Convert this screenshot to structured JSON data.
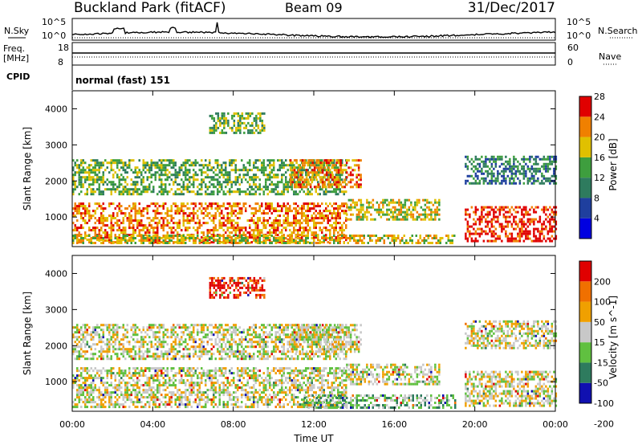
{
  "header": {
    "station": "Buckland Park (fitACF)",
    "beam": "Beam 09",
    "date": "31/Dec/2017"
  },
  "noise_panel": {
    "left_label": "N.Sky",
    "right_label": "N.Search",
    "ticks_left": [
      "10^5",
      "10^0"
    ],
    "ticks_right": [
      "10^5",
      "10^0"
    ]
  },
  "freq_panel": {
    "left_label_1": "Freq.",
    "left_label_2": "[MHz]",
    "left_ticks": [
      "18",
      "8"
    ],
    "right_label": "Nave",
    "right_ticks": [
      "60",
      "0"
    ]
  },
  "cpid_panel": {
    "label": "CPID",
    "program": "normal (fast) 151"
  },
  "chart_data": [
    {
      "type": "heatmap",
      "name": "power",
      "ylabel": "Slant Range [km]",
      "ylim": [
        180,
        4500
      ],
      "yticks": [
        "1000",
        "2000",
        "3000",
        "4000"
      ],
      "colorbar_label": "Power [dB]",
      "colorbar_ticks": [
        "4",
        "8",
        "12",
        "16",
        "20",
        "24",
        "28"
      ],
      "colors": [
        "#0000e0",
        "#1f3f9e",
        "#2e7b5e",
        "#3e9e3e",
        "#e0c000",
        "#f08000",
        "#e00000"
      ],
      "bands": [
        {
          "t0": 0.0,
          "t1": 13.6,
          "r0": 200,
          "r1": 1400,
          "level": 5
        },
        {
          "t0": 0.0,
          "t1": 13.6,
          "r0": 1600,
          "r1": 2600,
          "level": 3
        },
        {
          "t0": 10.8,
          "t1": 14.3,
          "r0": 1800,
          "r1": 2600,
          "level": 5
        },
        {
          "t0": 13.6,
          "t1": 18.2,
          "r0": 900,
          "r1": 1450,
          "level": 4
        },
        {
          "t0": 6.8,
          "t1": 9.5,
          "r0": 3300,
          "r1": 3900,
          "level": 3
        },
        {
          "t0": 19.5,
          "t1": 24.0,
          "r0": 300,
          "r1": 1300,
          "level": 6
        },
        {
          "t0": 19.5,
          "t1": 24.0,
          "r0": 1900,
          "r1": 2700,
          "level": 2
        },
        {
          "t0": 0.0,
          "t1": 19.0,
          "r0": 180,
          "r1": 450,
          "level": 4
        }
      ]
    },
    {
      "type": "heatmap",
      "name": "velocity",
      "ylabel": "Slant Range [km]",
      "ylim": [
        180,
        4500
      ],
      "yticks": [
        "1000",
        "2000",
        "3000",
        "4000"
      ],
      "xlabel": "Time UT",
      "xticks": [
        "00:00",
        "04:00",
        "08:00",
        "12:00",
        "16:00",
        "20:00",
        "00:00"
      ],
      "xlim": [
        0,
        24
      ],
      "colorbar_label": "Velocity [m s^-1]",
      "colorbar_ticks": [
        "200",
        "100",
        "50",
        "15",
        "-15",
        "-50",
        "-100",
        "-200"
      ],
      "colors": [
        "#1010b0",
        "#2e7b5e",
        "#60c040",
        "#c8c8c8",
        "#f0a000",
        "#f07000",
        "#e00000"
      ],
      "bands": [
        {
          "t0": 0.0,
          "t1": 13.6,
          "r0": 200,
          "r1": 1400,
          "level": 3
        },
        {
          "t0": 0.0,
          "t1": 13.6,
          "r0": 1600,
          "r1": 2600,
          "level": 3
        },
        {
          "t0": 10.8,
          "t1": 14.3,
          "r0": 1800,
          "r1": 2600,
          "level": 3
        },
        {
          "t0": 13.6,
          "t1": 18.2,
          "r0": 900,
          "r1": 1450,
          "level": 3
        },
        {
          "t0": 11.5,
          "t1": 19.0,
          "r0": 180,
          "r1": 600,
          "level": 2
        },
        {
          "t0": 6.8,
          "t1": 9.5,
          "r0": 3300,
          "r1": 3900,
          "level": 6
        },
        {
          "t0": 19.5,
          "t1": 24.0,
          "r0": 300,
          "r1": 1300,
          "level": 3
        },
        {
          "t0": 19.5,
          "t1": 24.0,
          "r0": 1900,
          "r1": 2700,
          "level": 3
        }
      ]
    }
  ]
}
